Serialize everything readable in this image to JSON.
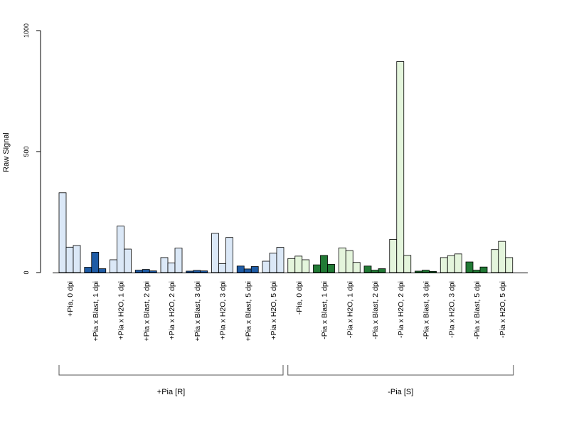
{
  "colors": {
    "plus_light": "#dbe8f7",
    "plus_dark": "#1f5ca6",
    "minus_light": "#e4f5dc",
    "minus_dark": "#217a35",
    "axis": "#000000",
    "bar_stroke": "#000000"
  },
  "chart_data": {
    "type": "bar",
    "ylabel": "Raw Signal",
    "ylim": [
      0,
      1000
    ],
    "yticks": [
      "0",
      "500",
      "1000"
    ],
    "grid": false,
    "legend": "none",
    "bars_per_category": 3,
    "categories": [
      {
        "label": "+Pia, 0 dpi",
        "values": [
          330,
          105,
          112
        ],
        "color": "plus_light"
      },
      {
        "label": "+Pia x Blast, 1 dpi",
        "values": [
          22,
          84,
          16
        ],
        "color": "plus_dark"
      },
      {
        "label": "+Pia x H2O, 1 dpi",
        "values": [
          53,
          192,
          97
        ],
        "color": "plus_light"
      },
      {
        "label": "+Pia x Blast, 2 dpi",
        "values": [
          10,
          13,
          7
        ],
        "color": "plus_dark"
      },
      {
        "label": "+Pia x H2O, 2 dpi",
        "values": [
          62,
          40,
          101
        ],
        "color": "plus_light"
      },
      {
        "label": "+Pia x Blast, 3 dpi",
        "values": [
          6,
          9,
          7
        ],
        "color": "plus_dark"
      },
      {
        "label": "+Pia x H2O, 3 dpi",
        "values": [
          162,
          37,
          145
        ],
        "color": "plus_light"
      },
      {
        "label": "+Pia x Blast, 5 dpi",
        "values": [
          27,
          15,
          25
        ],
        "color": "plus_dark"
      },
      {
        "label": "+Pia x H2O, 5 dpi",
        "values": [
          47,
          80,
          104
        ],
        "color": "plus_light"
      },
      {
        "label": "-Pia, 0 dpi",
        "values": [
          58,
          68,
          53
        ],
        "color": "minus_light"
      },
      {
        "label": "-Pia x Blast, 1 dpi",
        "values": [
          32,
          71,
          34
        ],
        "color": "minus_dark"
      },
      {
        "label": "-Pia x H2O, 1 dpi",
        "values": [
          102,
          91,
          42
        ],
        "color": "minus_light"
      },
      {
        "label": "-Pia x Blast, 2 dpi",
        "values": [
          27,
          10,
          16
        ],
        "color": "minus_dark"
      },
      {
        "label": "-Pia x H2O, 2 dpi",
        "values": [
          137,
          872,
          71
        ],
        "color": "minus_light"
      },
      {
        "label": "-Pia x Blast, 3 dpi",
        "values": [
          6,
          10,
          5
        ],
        "color": "minus_dark"
      },
      {
        "label": "-Pia x H2O, 3 dpi",
        "values": [
          62,
          70,
          77
        ],
        "color": "minus_light"
      },
      {
        "label": "-Pia x Blast, 5 dpi",
        "values": [
          44,
          10,
          23
        ],
        "color": "minus_dark"
      },
      {
        "label": "-Pia x H2O, 5 dpi",
        "values": [
          95,
          129,
          62
        ],
        "color": "minus_light"
      }
    ],
    "groups": [
      {
        "label": "+Pia [R]",
        "from": 0,
        "to": 8
      },
      {
        "label": "-Pia [S]",
        "from": 9,
        "to": 17
      }
    ]
  }
}
